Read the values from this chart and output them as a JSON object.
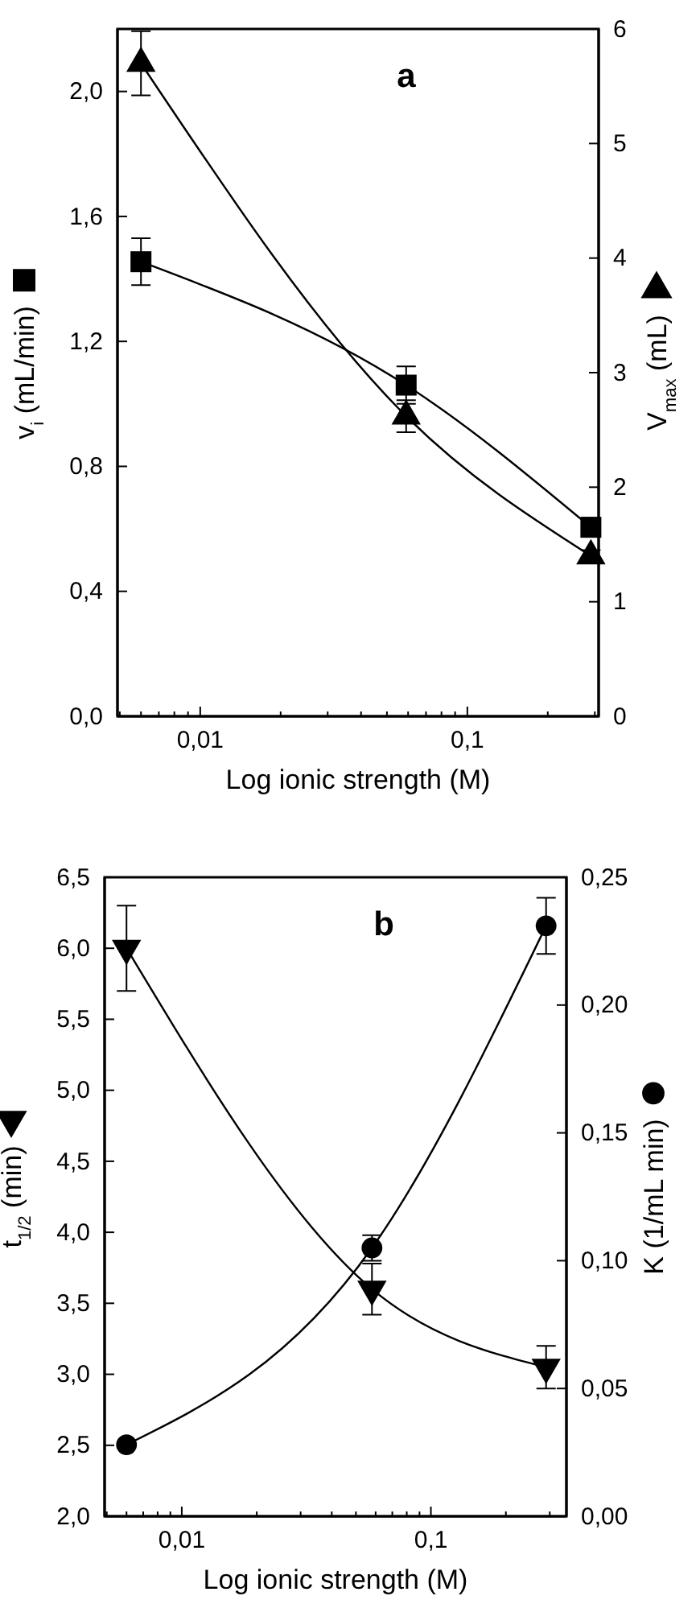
{
  "chart_data": [
    {
      "type": "line",
      "title": "a",
      "xlabel": "Log ionic strength (M)",
      "ylabel": "v$_{i}$ (mL/min)",
      "y2label": "V$_{max}$ (mL)",
      "log": "x",
      "line_style": "solid",
      "x": [
        0.006,
        0.059,
        0.29
      ],
      "xlim": [
        0.0049,
        0.31
      ],
      "xticks": [
        {
          "value": 0.005,
          "label": null
        },
        {
          "value": 0.006,
          "label": null
        },
        {
          "value": 0.007,
          "label": null
        },
        {
          "value": 0.008,
          "label": null
        },
        {
          "value": 0.009,
          "label": null
        },
        {
          "value": 0.01,
          "label": "0,01"
        },
        {
          "value": 0.02,
          "label": null
        },
        {
          "value": 0.03,
          "label": null
        },
        {
          "value": 0.04,
          "label": null
        },
        {
          "value": 0.05,
          "label": null
        },
        {
          "value": 0.06,
          "label": null
        },
        {
          "value": 0.07,
          "label": null
        },
        {
          "value": 0.08,
          "label": null
        },
        {
          "value": 0.09,
          "label": null
        },
        {
          "value": 0.1,
          "label": "0,1"
        },
        {
          "value": 0.2,
          "label": null
        },
        {
          "value": 0.3,
          "label": null
        }
      ],
      "ylim": [
        0,
        2.2
      ],
      "yticks": [
        {
          "value": 0,
          "label": "0,0"
        },
        {
          "value": 0.4,
          "label": "0,4"
        },
        {
          "value": 0.8,
          "label": "0,8"
        },
        {
          "value": 1.2,
          "label": "1,2"
        },
        {
          "value": 1.6,
          "label": "1,6"
        },
        {
          "value": 2.0,
          "label": "2,0"
        }
      ],
      "y2lim": [
        0,
        6
      ],
      "y2ticks": [
        0,
        1,
        2,
        3,
        4,
        5,
        6
      ],
      "series": [
        {
          "color": "#000000",
          "marker": "square",
          "values": [
            1.455,
            1.06,
            0.605
          ],
          "errors": [
            0.075,
            0.06,
            0.03
          ]
        },
        {
          "color": "#000000",
          "marker": "triangle",
          "axis": "y2",
          "values": [
            5.7,
            2.62,
            1.4
          ],
          "errors": [
            0.28,
            0.14,
            0.05
          ]
        }
      ]
    },
    {
      "type": "line",
      "title": "b",
      "xlabel": "Log ionic strength (M)",
      "ylabel": "t$_{1/2}$ (min)",
      "y2label": "K (1/mL min)",
      "log": "x",
      "line_style": "solid",
      "x": [
        0.006,
        0.058,
        0.29
      ],
      "xlim": [
        0.0049,
        0.35
      ],
      "xticks": [
        {
          "value": 0.005,
          "label": null
        },
        {
          "value": 0.006,
          "label": null
        },
        {
          "value": 0.007,
          "label": null
        },
        {
          "value": 0.008,
          "label": null
        },
        {
          "value": 0.009,
          "label": null
        },
        {
          "value": 0.01,
          "label": "0,01"
        },
        {
          "value": 0.02,
          "label": null
        },
        {
          "value": 0.03,
          "label": null
        },
        {
          "value": 0.04,
          "label": null
        },
        {
          "value": 0.05,
          "label": null
        },
        {
          "value": 0.06,
          "label": null
        },
        {
          "value": 0.07,
          "label": null
        },
        {
          "value": 0.08,
          "label": null
        },
        {
          "value": 0.09,
          "label": null
        },
        {
          "value": 0.1,
          "label": "0,1"
        },
        {
          "value": 0.2,
          "label": null
        },
        {
          "value": 0.3,
          "label": null
        }
      ],
      "ylim": [
        2.0,
        6.5
      ],
      "yticks": [
        {
          "value": 2.0,
          "label": "2,0"
        },
        {
          "value": 2.5,
          "label": "2,5"
        },
        {
          "value": 3.0,
          "label": "3,0"
        },
        {
          "value": 3.5,
          "label": "3,5"
        },
        {
          "value": 4.0,
          "label": "4,0"
        },
        {
          "value": 4.5,
          "label": "4,5"
        },
        {
          "value": 5.0,
          "label": "5,0"
        },
        {
          "value": 5.5,
          "label": "5,5"
        },
        {
          "value": 6.0,
          "label": "6,0"
        },
        {
          "value": 6.5,
          "label": "6,5"
        }
      ],
      "y2lim": [
        0,
        0.25
      ],
      "y2ticks": [
        {
          "value": 0,
          "label": "0,00"
        },
        {
          "value": 0.05,
          "label": "0,05"
        },
        {
          "value": 0.1,
          "label": "0,10"
        },
        {
          "value": 0.15,
          "label": "0,15"
        },
        {
          "value": 0.2,
          "label": "0,20"
        },
        {
          "value": 0.25,
          "label": "0,25"
        }
      ],
      "series": [
        {
          "color": "#000000",
          "marker": "triangle-down",
          "values": [
            6.0,
            3.6,
            3.05
          ],
          "errors": [
            0.3,
            0.18,
            0.15
          ]
        },
        {
          "color": "#000000",
          "marker": "circle",
          "axis": "y2",
          "values": [
            0.028,
            0.105,
            0.231
          ],
          "errors": [
            null,
            0.005,
            0.011
          ]
        }
      ]
    }
  ]
}
